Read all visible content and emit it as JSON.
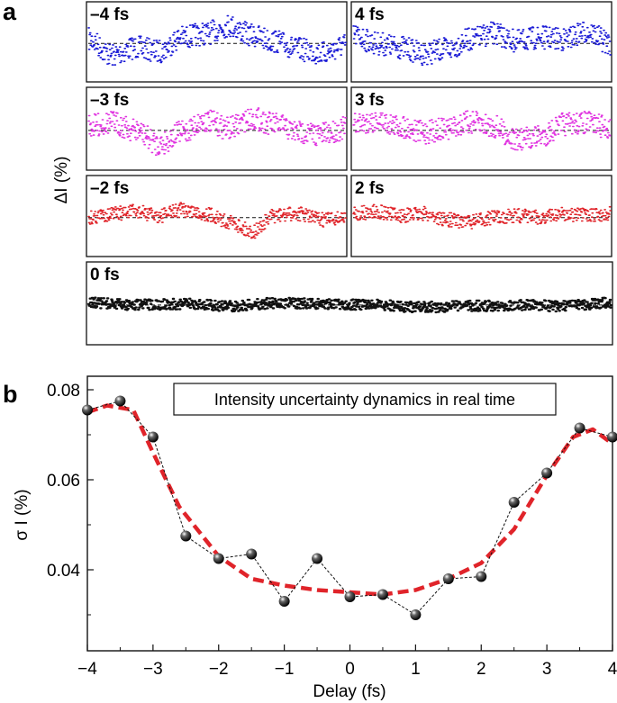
{
  "chart_data": [
    {
      "panel": "a",
      "type": "scatter",
      "ylabel": "ΔI (%)",
      "subplots": [
        {
          "title": "–4 fs",
          "color": "#1a1ad6",
          "shape": [
            0.2,
            -0.6,
            -0.2,
            -0.4,
            0.3,
            0.5,
            0.9,
            0.4,
            0.1,
            -0.3,
            -0.5,
            -0.1
          ]
        },
        {
          "title": "4 fs",
          "color": "#1a1ad6",
          "shape": [
            0.4,
            0.0,
            -0.2,
            -0.5,
            -0.3,
            0.2,
            0.5,
            0.1,
            0.3,
            0.2,
            0.6,
            0.0
          ]
        },
        {
          "title": "–3 fs",
          "color": "#e033e0",
          "shape": [
            0.2,
            0.4,
            0.0,
            -0.7,
            -0.1,
            0.5,
            0.1,
            0.6,
            0.3,
            -0.1,
            -0.2,
            0.1
          ]
        },
        {
          "title": "3 fs",
          "color": "#e033e0",
          "shape": [
            0.3,
            0.5,
            0.2,
            -0.1,
            0.1,
            0.4,
            0.2,
            -0.5,
            -0.3,
            0.3,
            0.4,
            0.1
          ]
        },
        {
          "title": "–2 fs",
          "color": "#e0242a",
          "shape": [
            0.0,
            0.2,
            0.3,
            0.1,
            0.4,
            0.2,
            -0.2,
            -0.7,
            0.1,
            0.2,
            -0.1,
            0.0
          ]
        },
        {
          "title": "2 fs",
          "color": "#e0242a",
          "shape": [
            0.2,
            0.3,
            0.1,
            0.2,
            -0.1,
            -0.2,
            0.0,
            0.1,
            0.0,
            0.2,
            0.1,
            0.2
          ]
        },
        {
          "title": "0 fs",
          "color": "#111111",
          "shape": [
            0.2,
            0.0,
            0.1,
            -0.1,
            0.2,
            0.1,
            0.0,
            -0.2,
            -0.1,
            0.0,
            -0.1,
            0.2
          ]
        }
      ]
    },
    {
      "panel": "b",
      "type": "line",
      "annotation": "Intensity uncertainty dynamics in real time",
      "xlabel": "Delay (fs)",
      "ylabel": "σ I (%)",
      "xlim": [
        -4,
        4
      ],
      "ylim": [
        0.022,
        0.083
      ],
      "xticks": [
        "−4",
        "−3",
        "−2",
        "−1",
        "0",
        "1",
        "2",
        "3",
        "4"
      ],
      "yticks": [
        "0.04",
        "0.06",
        "0.08"
      ],
      "ytick_values": [
        0.04,
        0.06,
        0.08
      ],
      "series": [
        {
          "marker": "sphere",
          "color": "#000000",
          "x": [
            -4,
            -3.5,
            -3,
            -2.5,
            -2,
            -1.5,
            -1,
            -0.5,
            0,
            0.5,
            1,
            1.5,
            2,
            2.5,
            3,
            3.5,
            4
          ],
          "y": [
            0.0755,
            0.0775,
            0.0695,
            0.0475,
            0.0425,
            0.0435,
            0.033,
            0.0425,
            0.034,
            0.0345,
            0.03,
            0.038,
            0.0385,
            0.055,
            0.0615,
            0.0715,
            0.0695
          ]
        },
        {
          "style": "dashed-fit",
          "color": "#e0242a",
          "x": [
            -4,
            -3.7,
            -3.3,
            -3,
            -2.6,
            -2,
            -1.5,
            -1,
            -0.5,
            0,
            0.5,
            1,
            1.5,
            2,
            2.5,
            3,
            3.4,
            3.7,
            4
          ],
          "y": [
            0.075,
            0.0765,
            0.0755,
            0.066,
            0.054,
            0.043,
            0.038,
            0.0365,
            0.0355,
            0.035,
            0.0345,
            0.0355,
            0.038,
            0.0415,
            0.049,
            0.061,
            0.0695,
            0.0712,
            0.068
          ]
        }
      ]
    }
  ],
  "labels": {
    "panel_a": "a",
    "panel_b": "b"
  }
}
